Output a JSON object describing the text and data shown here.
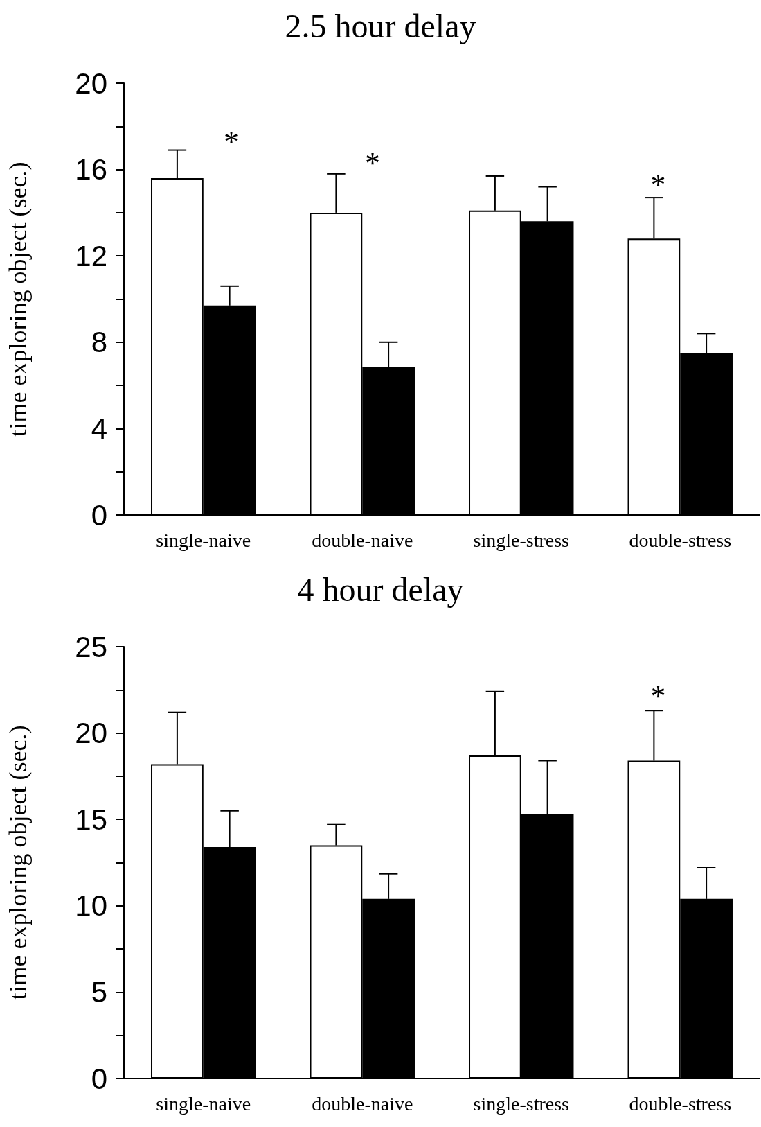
{
  "chart_data": [
    {
      "type": "bar",
      "title": "2.5 hour delay",
      "ylabel": "time exploring object (sec.)",
      "categories": [
        "single-naive",
        "double-naive",
        "single-stress",
        "double-stress"
      ],
      "series": [
        {
          "color": "#ffffff",
          "values": [
            15.6,
            14.0,
            14.1,
            12.8
          ],
          "errors": [
            [
              15.6,
              16.9
            ],
            [
              14.0,
              15.8
            ],
            [
              14.1,
              15.7
            ],
            [
              12.8,
              14.7
            ]
          ]
        },
        {
          "color": "#000000",
          "values": [
            9.7,
            6.85,
            13.6,
            7.5
          ],
          "errors": [
            [
              9.7,
              10.6
            ],
            [
              6.85,
              8.0
            ],
            [
              13.6,
              15.2
            ],
            [
              7.5,
              8.4
            ]
          ]
        }
      ],
      "ylim": [
        0,
        20
      ],
      "yticks": [
        0,
        {
          "value": 2,
          "label": null
        },
        4,
        {
          "value": 6,
          "label": null
        },
        8,
        {
          "value": 10,
          "label": null
        },
        12,
        {
          "value": 14,
          "label": null
        },
        16,
        {
          "value": 18,
          "label": null
        },
        20
      ],
      "annotations": [
        "*",
        "*",
        "*"
      ]
    },
    {
      "type": "bar",
      "title": "4 hour delay",
      "ylabel": "time exploring object (sec.)",
      "categories": [
        "single-naive",
        "double-naive",
        "single-stress",
        "double-stress"
      ],
      "series": [
        {
          "color": "#ffffff",
          "values": [
            18.2,
            13.5,
            18.7,
            18.4
          ],
          "errors": [
            [
              18.2,
              21.2
            ],
            [
              13.5,
              14.7
            ],
            [
              18.7,
              22.4
            ],
            [
              18.4,
              21.3
            ]
          ]
        },
        {
          "color": "#000000",
          "values": [
            13.4,
            10.4,
            15.3,
            10.4
          ],
          "errors": [
            [
              13.4,
              15.5
            ],
            [
              10.4,
              11.85
            ],
            [
              15.3,
              18.4
            ],
            [
              10.4,
              12.2
            ]
          ]
        }
      ],
      "ylim": [
        0,
        25
      ],
      "yticks": [
        0,
        {
          "value": 2.5,
          "label": null
        },
        5,
        {
          "value": 7.5,
          "label": null
        },
        10,
        {
          "value": 12.5,
          "label": null
        },
        15,
        {
          "value": 17.5,
          "label": null
        },
        20,
        {
          "value": 22.5,
          "label": null
        },
        25
      ],
      "annotations": [
        "*"
      ]
    }
  ]
}
